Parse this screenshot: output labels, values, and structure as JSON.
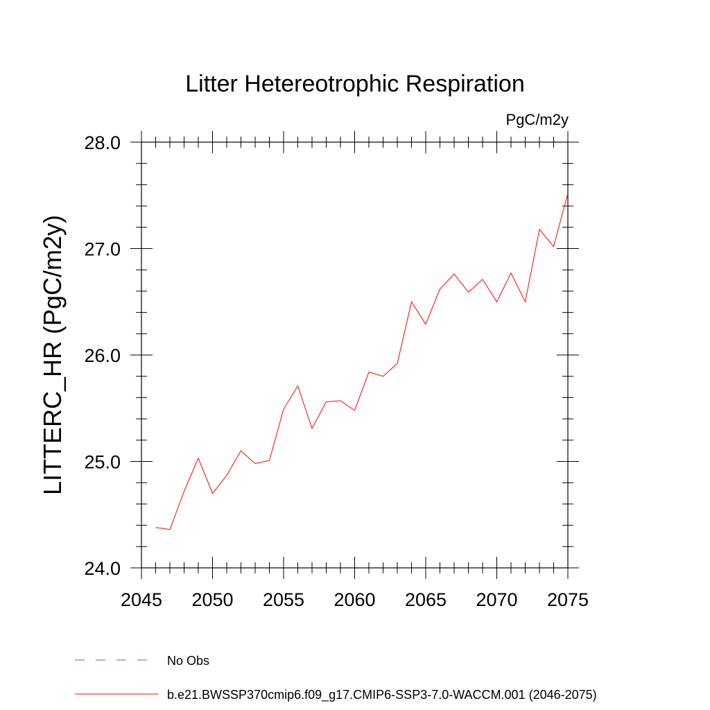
{
  "chart_data": {
    "type": "line",
    "title": "Litter Hetereotrophic Respiration",
    "units": "PgC/m2y",
    "ylabel": "LITTERC_HR  (PgC/m2y)",
    "xlabel": "",
    "xlim": [
      2045,
      2075
    ],
    "ylim": [
      24.0,
      28.0
    ],
    "xticks": [
      2045,
      2050,
      2055,
      2060,
      2065,
      2070,
      2075
    ],
    "xtick_labels": [
      "2045",
      "2050",
      "2055",
      "2060",
      "2065",
      "2070",
      "2075"
    ],
    "yticks": [
      24.0,
      25.0,
      26.0,
      27.0,
      28.0
    ],
    "ytick_labels": [
      "24.0",
      "25.0",
      "26.0",
      "27.0",
      "28.0"
    ],
    "grid": false,
    "legend_position": "bottom",
    "series": [
      {
        "name": "b.e21.BWSSP370cmip6.f09_g17.CMIP6-SSP3-7.0-WACCM.001 (2046-2075)",
        "color": "#ff0000",
        "style": "solid",
        "x": [
          2046,
          2047,
          2048,
          2049,
          2050,
          2051,
          2052,
          2053,
          2054,
          2055,
          2056,
          2057,
          2058,
          2059,
          2060,
          2061,
          2062,
          2063,
          2064,
          2065,
          2066,
          2067,
          2068,
          2069,
          2070,
          2071,
          2072,
          2073,
          2074,
          2075
        ],
        "values": [
          24.38,
          24.36,
          24.72,
          25.03,
          24.7,
          24.87,
          25.1,
          24.98,
          25.01,
          25.49,
          25.71,
          25.31,
          25.56,
          25.57,
          25.48,
          25.84,
          25.8,
          25.92,
          26.5,
          26.29,
          26.62,
          26.76,
          26.59,
          26.71,
          26.5,
          26.77,
          26.5,
          27.18,
          27.02,
          27.52
        ]
      }
    ],
    "legend": [
      {
        "label": "No Obs",
        "color": "#6b5fb5",
        "style": "dashed"
      },
      {
        "label": "b.e21.BWSSP370cmip6.f09_g17.CMIP6-SSP3-7.0-WACCM.001 (2046-2075)",
        "color": "#ff0000",
        "style": "solid"
      }
    ]
  }
}
